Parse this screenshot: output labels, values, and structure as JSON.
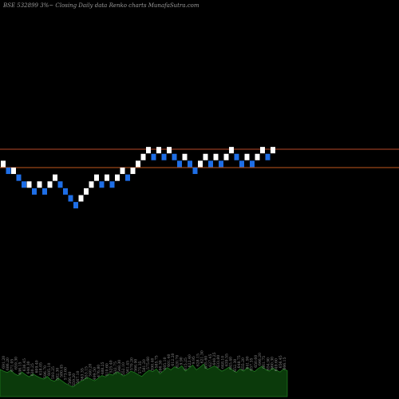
{
  "header": {
    "title": "BSE 532899 3%~  Closing Daily data  Renko  charts MunafaSutra.com"
  },
  "colors": {
    "background": "#000000",
    "up_brick": "#ffffff",
    "down_brick": "#1e6ee6",
    "upper_line": "#b84a2a",
    "lower_line": "#c2571e",
    "volume_fill": "#0b3a0b",
    "volume_edge": "#1f7a1f"
  },
  "chart_data": {
    "type": "renko",
    "title": "BSE 532899 3%~ Closing Daily data Renko charts MunafaSutra.com",
    "bricks": [
      {
        "d": "up",
        "top": 178,
        "bottom": 172
      },
      {
        "d": "down",
        "top": 172,
        "bottom": 166
      },
      {
        "d": "up",
        "top": 172,
        "bottom": 166
      },
      {
        "d": "down",
        "top": 166,
        "bottom": 160
      },
      {
        "d": "down",
        "top": 160,
        "bottom": 154
      },
      {
        "d": "up",
        "top": 160,
        "bottom": 154
      },
      {
        "d": "down",
        "top": 154,
        "bottom": 148
      },
      {
        "d": "up",
        "top": 160,
        "bottom": 154
      },
      {
        "d": "down",
        "top": 154,
        "bottom": 148
      },
      {
        "d": "up",
        "top": 160,
        "bottom": 154
      },
      {
        "d": "up",
        "top": 166,
        "bottom": 160
      },
      {
        "d": "down",
        "top": 160,
        "bottom": 154
      },
      {
        "d": "down",
        "top": 154,
        "bottom": 148
      },
      {
        "d": "down",
        "top": 148,
        "bottom": 142
      },
      {
        "d": "down",
        "top": 142,
        "bottom": 136
      },
      {
        "d": "up",
        "top": 148,
        "bottom": 142
      },
      {
        "d": "up",
        "top": 154,
        "bottom": 148
      },
      {
        "d": "up",
        "top": 160,
        "bottom": 154
      },
      {
        "d": "up",
        "top": 166,
        "bottom": 160
      },
      {
        "d": "down",
        "top": 160,
        "bottom": 154
      },
      {
        "d": "up",
        "top": 166,
        "bottom": 160
      },
      {
        "d": "down",
        "top": 160,
        "bottom": 154
      },
      {
        "d": "up",
        "top": 166,
        "bottom": 160
      },
      {
        "d": "up",
        "top": 172,
        "bottom": 166
      },
      {
        "d": "down",
        "top": 166,
        "bottom": 160
      },
      {
        "d": "up",
        "top": 172,
        "bottom": 166
      },
      {
        "d": "up",
        "top": 178,
        "bottom": 172
      },
      {
        "d": "up",
        "top": 184,
        "bottom": 178
      },
      {
        "d": "up",
        "top": 190,
        "bottom": 184
      },
      {
        "d": "down",
        "top": 184,
        "bottom": 178
      },
      {
        "d": "up",
        "top": 190,
        "bottom": 184
      },
      {
        "d": "down",
        "top": 184,
        "bottom": 178
      },
      {
        "d": "up",
        "top": 190,
        "bottom": 184
      },
      {
        "d": "down",
        "top": 184,
        "bottom": 178
      },
      {
        "d": "down",
        "top": 178,
        "bottom": 172
      },
      {
        "d": "up",
        "top": 184,
        "bottom": 178
      },
      {
        "d": "down",
        "top": 178,
        "bottom": 172
      },
      {
        "d": "down",
        "top": 172,
        "bottom": 166
      },
      {
        "d": "up",
        "top": 178,
        "bottom": 172
      },
      {
        "d": "up",
        "top": 184,
        "bottom": 178
      },
      {
        "d": "down",
        "top": 178,
        "bottom": 172
      },
      {
        "d": "up",
        "top": 184,
        "bottom": 178
      },
      {
        "d": "down",
        "top": 178,
        "bottom": 172
      },
      {
        "d": "up",
        "top": 184,
        "bottom": 178
      },
      {
        "d": "up",
        "top": 190,
        "bottom": 184
      },
      {
        "d": "down",
        "top": 184,
        "bottom": 178
      },
      {
        "d": "down",
        "top": 178,
        "bottom": 172
      },
      {
        "d": "up",
        "top": 184,
        "bottom": 178
      },
      {
        "d": "down",
        "top": 178,
        "bottom": 172
      },
      {
        "d": "up",
        "top": 184,
        "bottom": 178
      },
      {
        "d": "up",
        "top": 190,
        "bottom": 184
      },
      {
        "d": "down",
        "top": 184,
        "bottom": 178
      },
      {
        "d": "up",
        "top": 190,
        "bottom": 184
      }
    ],
    "reference_lines": [
      188,
      172
    ],
    "volume": [
      62,
      58,
      55,
      60,
      52,
      48,
      56,
      50,
      45,
      52,
      47,
      43,
      40,
      46,
      38,
      35,
      42,
      36,
      30,
      26,
      22,
      28,
      34,
      38,
      44,
      40,
      36,
      42,
      48,
      45,
      52,
      49,
      56,
      53,
      47,
      51,
      58,
      55,
      50,
      46,
      54,
      60,
      57,
      63,
      52,
      59,
      66,
      61,
      68,
      64,
      70,
      58,
      65,
      72,
      61,
      67,
      74,
      62,
      66,
      70,
      64,
      58,
      62,
      67,
      60,
      55,
      63,
      58,
      66,
      61,
      57,
      64,
      69,
      62,
      58,
      65,
      60,
      56,
      63,
      59
    ],
    "volume_labels": [
      "691.20",
      "686.20",
      "671.05",
      "659.30",
      "646.15",
      "636.45",
      "640.30",
      "630.25",
      "609.40",
      "618.05",
      "596.70",
      "605.10",
      "593.25",
      "582.30",
      "580.45",
      "573.60",
      "566.40",
      "559.20",
      "567.10",
      "563.35",
      "553.15",
      "540.20",
      "499.50",
      "476.80",
      "488.25",
      "510.60",
      "525.40",
      "532.75",
      "548.30",
      "552.10",
      "561.45",
      "570.20",
      "566.90",
      "575.35",
      "581.20",
      "575.60",
      "590.40",
      "585.75",
      "596.30",
      "605.10",
      "601.40",
      "612.20",
      "620.70",
      "9.90",
      "615.25",
      "622.40",
      "9.95",
      "628.15",
      "621.30",
      "635.60",
      "627.45",
      "640.25",
      "633.80",
      "648.10",
      "639.55",
      "645.40",
      "652.30",
      "648.75",
      "655.20",
      "641.90",
      "657.35",
      "650.60",
      "646.20",
      "661.75",
      "654.90",
      "660.30",
      "649.60",
      "656.45",
      "666.15"
    ]
  }
}
